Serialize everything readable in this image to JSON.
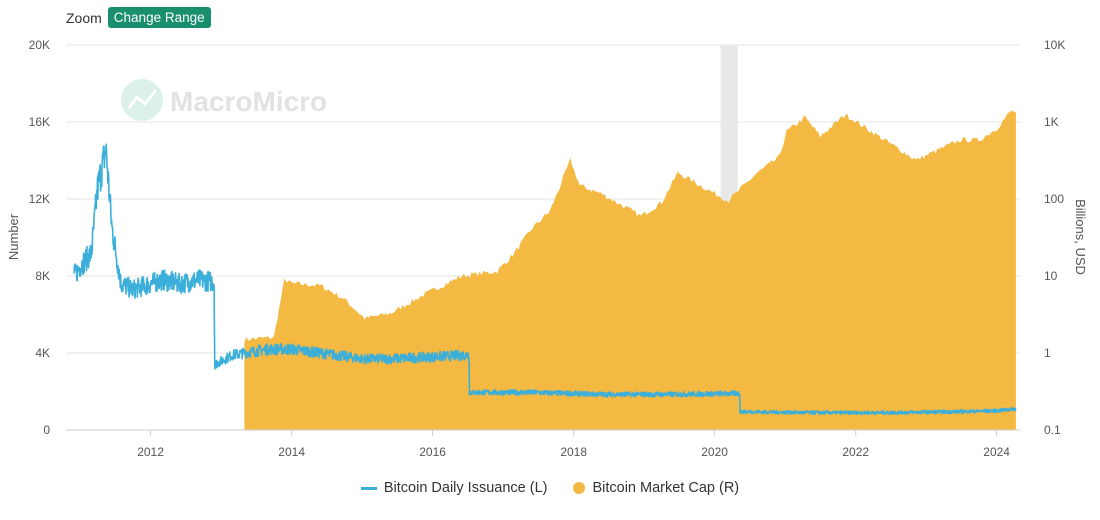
{
  "toolbar": {
    "zoom_label": "Zoom",
    "range_button_label": "Change Range"
  },
  "watermark": {
    "text": "MacroMicro"
  },
  "colors": {
    "issuance": "#3bafd9",
    "market_cap": "#f4b942",
    "recession_band": "#e8e8e8",
    "grid": "#e6e6e6",
    "button": "#1a8f6e"
  },
  "chart_data": {
    "type": "line",
    "title": "",
    "x_range": [
      "2010-10-20",
      "2024-05-01"
    ],
    "x_ticks": [
      "2012",
      "2014",
      "2016",
      "2018",
      "2020",
      "2022",
      "2024"
    ],
    "ylabel_left": "Number",
    "ylabel_right": "Billions, USD",
    "ylim_left": [
      0,
      20000
    ],
    "ylim_right": [
      0.1,
      10000
    ],
    "y_scale_right": "log",
    "y_ticks_left": [
      "0",
      "4K",
      "8K",
      "12K",
      "16K",
      "20K"
    ],
    "y_ticks_right": [
      "0.1",
      "1",
      "10",
      "100",
      "1K",
      "10K"
    ],
    "grid": true,
    "legend_position": "bottom",
    "shaded_periods": [
      {
        "start": "2020-02-01",
        "end": "2020-04-30"
      }
    ],
    "series": [
      {
        "name": "Bitcoin Daily Issuance (L)",
        "axis": "left",
        "style": "line",
        "points": [
          [
            "2010-12-01",
            8000
          ],
          [
            "2011-01-01",
            8500
          ],
          [
            "2011-03-01",
            9200
          ],
          [
            "2011-04-01",
            12500
          ],
          [
            "2011-05-15",
            14600
          ],
          [
            "2011-06-15",
            10500
          ],
          [
            "2011-08-01",
            7600
          ],
          [
            "2011-10-01",
            7300
          ],
          [
            "2011-12-01",
            7500
          ],
          [
            "2012-03-01",
            7800
          ],
          [
            "2012-06-01",
            7600
          ],
          [
            "2012-09-01",
            7800
          ],
          [
            "2012-11-25",
            7700
          ],
          [
            "2012-11-29",
            3400
          ],
          [
            "2013-03-01",
            3900
          ],
          [
            "2013-09-01",
            4200
          ],
          [
            "2014-01-01",
            4200
          ],
          [
            "2014-06-01",
            4000
          ],
          [
            "2015-01-01",
            3700
          ],
          [
            "2015-06-01",
            3700
          ],
          [
            "2016-01-01",
            3800
          ],
          [
            "2016-07-08",
            3900
          ],
          [
            "2016-07-10",
            1950
          ],
          [
            "2017-06-01",
            1950
          ],
          [
            "2018-06-01",
            1850
          ],
          [
            "2019-06-01",
            1850
          ],
          [
            "2020-05-10",
            1900
          ],
          [
            "2020-05-12",
            950
          ],
          [
            "2021-06-01",
            900
          ],
          [
            "2022-06-01",
            900
          ],
          [
            "2023-06-01",
            950
          ],
          [
            "2024-01-01",
            1000
          ],
          [
            "2024-04-10",
            1100
          ]
        ]
      },
      {
        "name": "Bitcoin Market Cap (R)",
        "axis": "right",
        "style": "area",
        "points": [
          [
            "2013-05-01",
            1.5
          ],
          [
            "2013-10-01",
            1.6
          ],
          [
            "2013-11-25",
            9
          ],
          [
            "2014-01-01",
            8
          ],
          [
            "2014-06-01",
            7.5
          ],
          [
            "2014-10-01",
            5
          ],
          [
            "2015-01-15",
            2.8
          ],
          [
            "2015-06-01",
            3.3
          ],
          [
            "2015-11-05",
            5.5
          ],
          [
            "2016-01-01",
            6.5
          ],
          [
            "2016-06-01",
            10
          ],
          [
            "2016-12-01",
            11.5
          ],
          [
            "2017-03-01",
            20
          ],
          [
            "2017-06-01",
            42
          ],
          [
            "2017-09-01",
            70
          ],
          [
            "2017-12-15",
            320
          ],
          [
            "2018-02-01",
            150
          ],
          [
            "2018-06-01",
            115
          ],
          [
            "2018-12-15",
            60
          ],
          [
            "2019-04-01",
            90
          ],
          [
            "2019-06-25",
            220
          ],
          [
            "2019-12-01",
            130
          ],
          [
            "2020-03-12",
            95
          ],
          [
            "2020-08-01",
            210
          ],
          [
            "2020-12-01",
            350
          ],
          [
            "2021-01-08",
            750
          ],
          [
            "2021-04-14",
            1150
          ],
          [
            "2021-07-01",
            650
          ],
          [
            "2021-11-08",
            1250
          ],
          [
            "2022-06-01",
            580
          ],
          [
            "2022-11-10",
            320
          ],
          [
            "2023-03-01",
            430
          ],
          [
            "2023-07-01",
            590
          ],
          [
            "2023-10-01",
            580
          ],
          [
            "2024-01-01",
            820
          ],
          [
            "2024-03-14",
            1380
          ],
          [
            "2024-04-10",
            1350
          ]
        ]
      }
    ]
  }
}
